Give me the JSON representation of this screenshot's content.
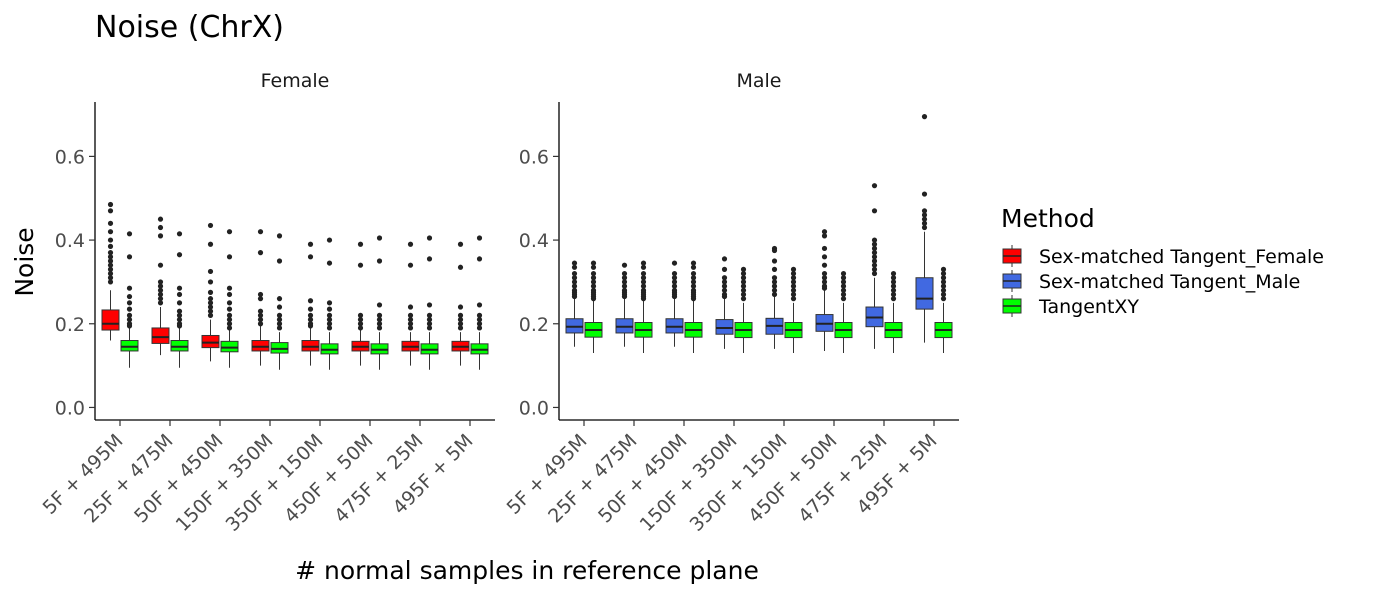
{
  "chart_data": {
    "type": "boxplot",
    "title": "Noise (ChrX)",
    "xlabel": "# normal samples in reference plane",
    "ylabel": "Noise",
    "ylim": [
      -0.03,
      0.73
    ],
    "yticks": [
      0.0,
      0.2,
      0.4,
      0.6
    ],
    "ytick_labels": [
      "0.0",
      "0.2",
      "0.4",
      "0.6"
    ],
    "grid": false,
    "legend_position": "right",
    "categories": [
      "5F + 495M",
      "25F + 475M",
      "50F + 450M",
      "150F + 350M",
      "350F + 150M",
      "450F + 50M",
      "475F + 25M",
      "495F + 5M"
    ],
    "legend": {
      "title": "Method",
      "items": [
        {
          "name": "Sex-matched Tangent_Female",
          "color": "#FF0000"
        },
        {
          "name": "Sex-matched Tangent_Male",
          "color": "#4169E1"
        },
        {
          "name": "TangentXY",
          "color": "#00FF00"
        }
      ]
    },
    "panels": [
      {
        "name": "Female",
        "series": [
          {
            "name": "Sex-matched Tangent_Female",
            "color": "#FF0000",
            "boxes": [
              {
                "min": 0.16,
                "q1": 0.185,
                "median": 0.2,
                "q3": 0.233,
                "max": 0.28,
                "outliers": [
                  0.3,
                  0.31,
                  0.32,
                  0.33,
                  0.34,
                  0.35,
                  0.36,
                  0.37,
                  0.385,
                  0.4,
                  0.42,
                  0.44,
                  0.47,
                  0.485
                ]
              },
              {
                "min": 0.125,
                "q1": 0.153,
                "median": 0.168,
                "q3": 0.19,
                "max": 0.24,
                "outliers": [
                  0.25,
                  0.26,
                  0.27,
                  0.28,
                  0.29,
                  0.3,
                  0.34,
                  0.41,
                  0.43,
                  0.45
                ]
              },
              {
                "min": 0.11,
                "q1": 0.143,
                "median": 0.155,
                "q3": 0.172,
                "max": 0.21,
                "outliers": [
                  0.22,
                  0.23,
                  0.24,
                  0.25,
                  0.26,
                  0.275,
                  0.3,
                  0.325,
                  0.39,
                  0.435
                ]
              },
              {
                "min": 0.1,
                "q1": 0.135,
                "median": 0.145,
                "q3": 0.16,
                "max": 0.195,
                "outliers": [
                  0.2,
                  0.21,
                  0.22,
                  0.23,
                  0.26,
                  0.27,
                  0.37,
                  0.42
                ]
              },
              {
                "min": 0.1,
                "q1": 0.135,
                "median": 0.145,
                "q3": 0.16,
                "max": 0.19,
                "outliers": [
                  0.195,
                  0.2,
                  0.21,
                  0.22,
                  0.235,
                  0.255,
                  0.36,
                  0.39
                ]
              },
              {
                "min": 0.1,
                "q1": 0.135,
                "median": 0.145,
                "q3": 0.158,
                "max": 0.185,
                "outliers": [
                  0.19,
                  0.2,
                  0.21,
                  0.22,
                  0.34,
                  0.39
                ]
              },
              {
                "min": 0.1,
                "q1": 0.135,
                "median": 0.145,
                "q3": 0.158,
                "max": 0.18,
                "outliers": [
                  0.19,
                  0.2,
                  0.21,
                  0.22,
                  0.24,
                  0.34,
                  0.39
                ]
              },
              {
                "min": 0.1,
                "q1": 0.135,
                "median": 0.145,
                "q3": 0.158,
                "max": 0.18,
                "outliers": [
                  0.19,
                  0.2,
                  0.21,
                  0.22,
                  0.24,
                  0.335,
                  0.39
                ]
              }
            ]
          },
          {
            "name": "TangentXY",
            "color": "#00FF00",
            "boxes": [
              {
                "min": 0.095,
                "q1": 0.135,
                "median": 0.145,
                "q3": 0.16,
                "max": 0.19,
                "outliers": [
                  0.195,
                  0.2,
                  0.21,
                  0.22,
                  0.235,
                  0.25,
                  0.265,
                  0.285,
                  0.36,
                  0.415
                ]
              },
              {
                "min": 0.095,
                "q1": 0.135,
                "median": 0.145,
                "q3": 0.16,
                "max": 0.19,
                "outliers": [
                  0.195,
                  0.2,
                  0.21,
                  0.22,
                  0.23,
                  0.25,
                  0.27,
                  0.285,
                  0.365,
                  0.415
                ]
              },
              {
                "min": 0.095,
                "q1": 0.133,
                "median": 0.143,
                "q3": 0.158,
                "max": 0.185,
                "outliers": [
                  0.19,
                  0.2,
                  0.21,
                  0.22,
                  0.235,
                  0.25,
                  0.27,
                  0.285,
                  0.36,
                  0.42
                ]
              },
              {
                "min": 0.09,
                "q1": 0.13,
                "median": 0.14,
                "q3": 0.155,
                "max": 0.18,
                "outliers": [
                  0.19,
                  0.2,
                  0.21,
                  0.22,
                  0.24,
                  0.26,
                  0.35,
                  0.41
                ]
              },
              {
                "min": 0.09,
                "q1": 0.128,
                "median": 0.138,
                "q3": 0.152,
                "max": 0.18,
                "outliers": [
                  0.19,
                  0.2,
                  0.21,
                  0.22,
                  0.235,
                  0.25,
                  0.345,
                  0.4
                ]
              },
              {
                "min": 0.09,
                "q1": 0.128,
                "median": 0.138,
                "q3": 0.152,
                "max": 0.18,
                "outliers": [
                  0.19,
                  0.2,
                  0.21,
                  0.22,
                  0.245,
                  0.35,
                  0.405
                ]
              },
              {
                "min": 0.09,
                "q1": 0.128,
                "median": 0.138,
                "q3": 0.152,
                "max": 0.18,
                "outliers": [
                  0.19,
                  0.2,
                  0.21,
                  0.22,
                  0.245,
                  0.355,
                  0.405
                ]
              },
              {
                "min": 0.09,
                "q1": 0.128,
                "median": 0.138,
                "q3": 0.152,
                "max": 0.18,
                "outliers": [
                  0.19,
                  0.2,
                  0.21,
                  0.22,
                  0.245,
                  0.355,
                  0.405
                ]
              }
            ]
          }
        ]
      },
      {
        "name": "Male",
        "series": [
          {
            "name": "Sex-matched Tangent_Male",
            "color": "#4169E1",
            "boxes": [
              {
                "min": 0.145,
                "q1": 0.178,
                "median": 0.193,
                "q3": 0.212,
                "max": 0.26,
                "outliers": [
                  0.265,
                  0.27,
                  0.275,
                  0.28,
                  0.29,
                  0.3,
                  0.31,
                  0.32,
                  0.335,
                  0.345
                ]
              },
              {
                "min": 0.145,
                "q1": 0.178,
                "median": 0.193,
                "q3": 0.212,
                "max": 0.26,
                "outliers": [
                  0.265,
                  0.27,
                  0.275,
                  0.28,
                  0.29,
                  0.3,
                  0.31,
                  0.32,
                  0.34
                ]
              },
              {
                "min": 0.145,
                "q1": 0.178,
                "median": 0.193,
                "q3": 0.212,
                "max": 0.26,
                "outliers": [
                  0.265,
                  0.27,
                  0.275,
                  0.28,
                  0.29,
                  0.3,
                  0.31,
                  0.32,
                  0.345
                ]
              },
              {
                "min": 0.14,
                "q1": 0.175,
                "median": 0.19,
                "q3": 0.21,
                "max": 0.26,
                "outliers": [
                  0.265,
                  0.27,
                  0.28,
                  0.29,
                  0.3,
                  0.31,
                  0.33,
                  0.355
                ]
              },
              {
                "min": 0.14,
                "q1": 0.175,
                "median": 0.195,
                "q3": 0.213,
                "max": 0.265,
                "outliers": [
                  0.27,
                  0.28,
                  0.29,
                  0.3,
                  0.31,
                  0.33,
                  0.35,
                  0.375,
                  0.38
                ]
              },
              {
                "min": 0.135,
                "q1": 0.182,
                "median": 0.2,
                "q3": 0.222,
                "max": 0.28,
                "outliers": [
                  0.285,
                  0.29,
                  0.3,
                  0.31,
                  0.32,
                  0.34,
                  0.36,
                  0.38,
                  0.41,
                  0.42
                ]
              },
              {
                "min": 0.14,
                "q1": 0.193,
                "median": 0.215,
                "q3": 0.24,
                "max": 0.31,
                "outliers": [
                  0.32,
                  0.33,
                  0.34,
                  0.35,
                  0.36,
                  0.37,
                  0.38,
                  0.39,
                  0.4,
                  0.47,
                  0.53
                ]
              },
              {
                "min": 0.155,
                "q1": 0.235,
                "median": 0.26,
                "q3": 0.31,
                "max": 0.42,
                "outliers": [
                  0.43,
                  0.44,
                  0.45,
                  0.46,
                  0.47,
                  0.51,
                  0.695
                ]
              }
            ]
          },
          {
            "name": "TangentXY",
            "color": "#00FF00",
            "boxes": [
              {
                "min": 0.13,
                "q1": 0.168,
                "median": 0.185,
                "q3": 0.203,
                "max": 0.255,
                "outliers": [
                  0.26,
                  0.265,
                  0.27,
                  0.275,
                  0.28,
                  0.29,
                  0.3,
                  0.31,
                  0.32,
                  0.335,
                  0.345
                ]
              },
              {
                "min": 0.13,
                "q1": 0.168,
                "median": 0.185,
                "q3": 0.203,
                "max": 0.255,
                "outliers": [
                  0.26,
                  0.265,
                  0.27,
                  0.275,
                  0.28,
                  0.29,
                  0.3,
                  0.31,
                  0.32,
                  0.335,
                  0.345
                ]
              },
              {
                "min": 0.13,
                "q1": 0.168,
                "median": 0.185,
                "q3": 0.203,
                "max": 0.255,
                "outliers": [
                  0.26,
                  0.265,
                  0.27,
                  0.275,
                  0.28,
                  0.29,
                  0.3,
                  0.31,
                  0.32,
                  0.335,
                  0.345
                ]
              },
              {
                "min": 0.13,
                "q1": 0.167,
                "median": 0.185,
                "q3": 0.203,
                "max": 0.25,
                "outliers": [
                  0.26,
                  0.27,
                  0.28,
                  0.29,
                  0.3,
                  0.31,
                  0.32,
                  0.33
                ]
              },
              {
                "min": 0.13,
                "q1": 0.167,
                "median": 0.185,
                "q3": 0.203,
                "max": 0.25,
                "outliers": [
                  0.26,
                  0.27,
                  0.28,
                  0.29,
                  0.3,
                  0.31,
                  0.32,
                  0.33
                ]
              },
              {
                "min": 0.13,
                "q1": 0.167,
                "median": 0.185,
                "q3": 0.203,
                "max": 0.25,
                "outliers": [
                  0.26,
                  0.27,
                  0.28,
                  0.29,
                  0.3,
                  0.31,
                  0.32
                ]
              },
              {
                "min": 0.13,
                "q1": 0.167,
                "median": 0.185,
                "q3": 0.203,
                "max": 0.25,
                "outliers": [
                  0.26,
                  0.27,
                  0.28,
                  0.29,
                  0.3,
                  0.31,
                  0.32
                ]
              },
              {
                "min": 0.13,
                "q1": 0.167,
                "median": 0.185,
                "q3": 0.203,
                "max": 0.25,
                "outliers": [
                  0.26,
                  0.27,
                  0.28,
                  0.29,
                  0.3,
                  0.31,
                  0.32,
                  0.33
                ]
              }
            ]
          }
        ]
      }
    ]
  }
}
